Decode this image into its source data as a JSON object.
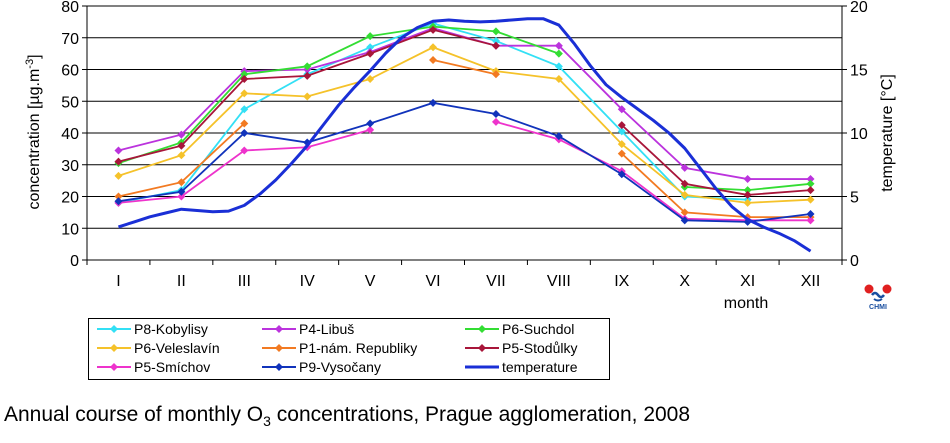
{
  "chart_data": {
    "type": "line",
    "categories": [
      "I",
      "II",
      "III",
      "IV",
      "V",
      "VI",
      "VII",
      "VIII",
      "IX",
      "X",
      "XI",
      "XII"
    ],
    "xlabel": "month",
    "ylabel": "concentration [µg.m-3]",
    "ylabel_parts": {
      "main": "concentration [µg.m",
      "sup": "-3",
      "end": "]"
    },
    "y2label": "temperature [°C]",
    "ylim": [
      0,
      80
    ],
    "y2lim": [
      0,
      20
    ],
    "yticks": [
      "0",
      "10",
      "20",
      "30",
      "40",
      "50",
      "60",
      "70",
      "80"
    ],
    "y2ticks": [
      "0",
      "5",
      "10",
      "15",
      "20"
    ],
    "grid": "horizontal",
    "legend_placement": "bottom-left",
    "series": [
      {
        "name": "P8-Kobylisy",
        "color": "#33e0f5",
        "values": [
          18,
          22,
          47.5,
          58.5,
          67,
          74.5,
          69,
          61,
          40.5,
          20,
          19,
          null
        ]
      },
      {
        "name": "P4-Libuš",
        "color": "#bb33dd",
        "values": [
          34.5,
          39.5,
          59.5,
          60,
          65.5,
          73,
          67.5,
          67.5,
          47.5,
          29,
          25.5,
          25.5
        ]
      },
      {
        "name": "P6-Suchdol",
        "color": "#33dd33",
        "values": [
          30.5,
          37,
          58.5,
          61,
          70.5,
          73.5,
          72,
          65,
          null,
          23,
          22,
          24
        ]
      },
      {
        "name": "P6-Veleslavín",
        "color": "#f5c22a",
        "values": [
          26.5,
          33,
          52.5,
          51.5,
          57,
          67,
          59.5,
          57,
          36.5,
          20.5,
          18,
          19
        ]
      },
      {
        "name": "P1-nám. Republiky",
        "color": "#f27a22",
        "values": [
          20,
          24.5,
          43,
          null,
          null,
          63,
          58.5,
          null,
          33.5,
          15,
          13.5,
          13.5
        ]
      },
      {
        "name": "P5-Stodůlky",
        "color": "#a8163a",
        "values": [
          31,
          36,
          57,
          58,
          65,
          72.5,
          67.5,
          null,
          42.5,
          24,
          20.5,
          22
        ]
      },
      {
        "name": "P5-Smíchov",
        "color": "#ee33cc",
        "values": [
          18,
          20,
          34.5,
          35.5,
          41,
          null,
          43.5,
          38,
          28,
          13,
          12.5,
          12.5
        ]
      },
      {
        "name": "P9-Vysočany",
        "color": "#1133bb",
        "values": [
          18.5,
          21.5,
          40,
          37,
          43,
          49.5,
          46,
          39,
          27,
          12.5,
          12,
          14.5
        ]
      }
    ],
    "temperature": {
      "name": "temperature",
      "color": "#1a2fd6",
      "axis": "right",
      "x": [
        1,
        1.25,
        1.5,
        1.75,
        2,
        2.25,
        2.5,
        2.75,
        3,
        3.25,
        3.5,
        3.75,
        4,
        4.25,
        4.5,
        4.75,
        5,
        5.25,
        5.5,
        5.75,
        6,
        6.25,
        6.5,
        6.75,
        7,
        7.25,
        7.5,
        7.75,
        8,
        8.25,
        8.5,
        8.75,
        9,
        9.25,
        9.5,
        9.75,
        10,
        10.25,
        10.5,
        10.75,
        11,
        11.25,
        11.5,
        11.75,
        12
      ],
      "values": [
        2.6,
        3.0,
        3.4,
        3.7,
        4.0,
        3.9,
        3.8,
        3.85,
        4.3,
        5.2,
        6.3,
        7.6,
        9.0,
        10.6,
        12.2,
        13.6,
        14.9,
        16.3,
        17.5,
        18.3,
        18.8,
        18.9,
        18.8,
        18.75,
        18.8,
        18.9,
        19.0,
        19.0,
        18.5,
        17.0,
        15.3,
        13.8,
        12.8,
        11.9,
        11.0,
        10.0,
        8.8,
        7.2,
        5.6,
        4.2,
        3.2,
        2.6,
        2.1,
        1.5,
        0.7
      ]
    },
    "title": ""
  },
  "caption": {
    "pre": "Annual course of monthly O",
    "sub": "3",
    "post": " concentrations, Prague agglomeration, 2008"
  },
  "logo": {
    "text": "CHMI",
    "dot_color": "#e02020",
    "wave_color": "#1a4fa0"
  }
}
